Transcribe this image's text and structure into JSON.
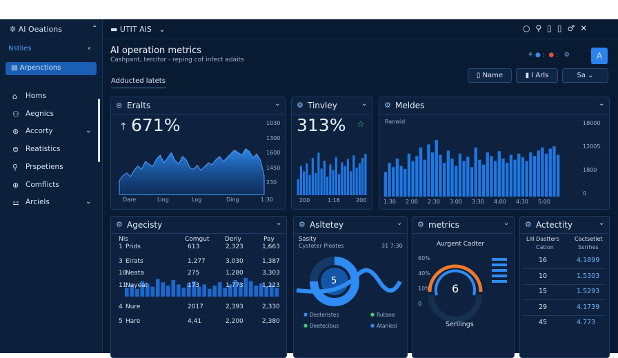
{
  "topbar": {
    "app": "AI Oeations",
    "workspace": "UTIT AIS"
  },
  "sidebar": {
    "section": "Nstlies",
    "active": "Arpenctions",
    "items": [
      "Homs",
      "Aegnics",
      "Accorty",
      "Reatistics",
      "Prspetiens",
      "Comflicts",
      "Arciels"
    ]
  },
  "header": {
    "title": "AI operation metrics",
    "subtitle": "Cashpant, tercitor - reping cof infect adaits",
    "tab": "Adducted latets",
    "buttons": [
      "Name",
      "I Arls",
      "Sa"
    ],
    "avatar": "A"
  },
  "cards": [
    {
      "title": "Eralts",
      "value": "671%",
      "chart": {
        "type": "area",
        "ylim": [
          0,
          100
        ],
        "values": [
          22,
          30,
          34,
          28,
          38,
          45,
          40,
          52,
          48,
          44,
          56,
          62,
          50,
          58,
          66,
          54,
          48,
          60,
          55,
          42,
          40,
          46,
          38,
          44,
          50,
          47,
          55,
          60,
          52,
          58,
          64,
          70,
          66,
          62,
          72,
          68,
          58,
          64,
          54,
          30
        ],
        "x_labels": [
          "Dare",
          "Ling",
          "Log",
          "Ding",
          "1:30"
        ],
        "y_labels": [
          "1030",
          "1300",
          "1600",
          "1450",
          "230"
        ]
      }
    },
    {
      "title": "Tinvley",
      "value": "313%",
      "chart": {
        "type": "bar",
        "ylim": [
          0,
          100
        ],
        "values": [
          30,
          55,
          45,
          60,
          38,
          70,
          42,
          80,
          50,
          65,
          35,
          58,
          48,
          72,
          40,
          62,
          55,
          68,
          45,
          75,
          52,
          60,
          70,
          78
        ],
        "x_labels": [
          "200",
          "1:16",
          "200"
        ]
      }
    },
    {
      "title": "Meldes",
      "chart": {
        "type": "bar",
        "label": "Ranwid",
        "ylim": [
          0,
          100
        ],
        "values": [
          40,
          55,
          48,
          62,
          50,
          45,
          70,
          58,
          66,
          80,
          60,
          85,
          72,
          92,
          68,
          55,
          75,
          62,
          50,
          70,
          58,
          65,
          48,
          80,
          60,
          52,
          72,
          66,
          58,
          74,
          62,
          55,
          68,
          60,
          70,
          64,
          58,
          72,
          66,
          75,
          80,
          70,
          78,
          82,
          68
        ],
        "x_labels": [
          "1:30",
          "2:00",
          "2:30",
          "3:00",
          "3:30",
          "4:00",
          "4:30",
          "5:00"
        ],
        "y_labels": [
          "18000",
          "12005",
          "1800",
          "0"
        ]
      }
    }
  ],
  "activity": {
    "title": "Agecisty",
    "columns": [
      "Nis",
      "Comgut",
      "Deriy",
      "Pay"
    ],
    "rows": [
      [
        "1",
        "Prids",
        "613",
        "2,323",
        "1,663"
      ],
      [
        "3",
        "Eirats",
        "1,277",
        "3,030",
        "1,387"
      ],
      [
        "10",
        "Neata",
        "275",
        "1,280",
        "3,303"
      ],
      [
        "11",
        "Nayeat",
        "173",
        "1,773",
        "1,223"
      ],
      [
        "4",
        "Nure",
        "2017",
        "2,393",
        "2,330"
      ],
      [
        "5",
        "Hare",
        "4,41",
        "2,200",
        "2,380"
      ]
    ],
    "chart": {
      "ylim": [
        0,
        100
      ],
      "values": [
        40,
        55,
        35,
        70,
        60,
        45,
        80,
        65,
        50,
        75,
        55,
        40,
        60,
        70,
        45,
        55,
        35,
        50,
        65,
        40,
        55,
        75,
        60,
        85,
        70,
        50,
        60,
        45,
        55,
        40
      ]
    }
  },
  "safety": {
    "title": "Asltetey",
    "label1": "Sasity",
    "label2": "Cysteter Pleates",
    "label3": "31 7:30",
    "center": "5",
    "legend": [
      "Desteristes",
      "Rutane",
      "Deetecibus",
      "Ataniesl"
    ]
  },
  "metrics": {
    "title": "metrics",
    "label": "Aurgent Cadter",
    "value": "6",
    "footer": "Serilings",
    "scale": [
      "60%",
      "40%",
      "10%",
      "0"
    ]
  },
  "actectity": {
    "title": "Actectity",
    "columns": [
      "LIII Dastters",
      "Cactsetlet"
    ],
    "subcolumns": [
      "Cation",
      "Ssrrhes"
    ],
    "rows": [
      [
        "16",
        "4.1899"
      ],
      [
        "10",
        "1.5303"
      ],
      [
        "15",
        "1.5293"
      ],
      [
        "29",
        "4.1739"
      ],
      [
        "45",
        "4.773"
      ]
    ]
  }
}
